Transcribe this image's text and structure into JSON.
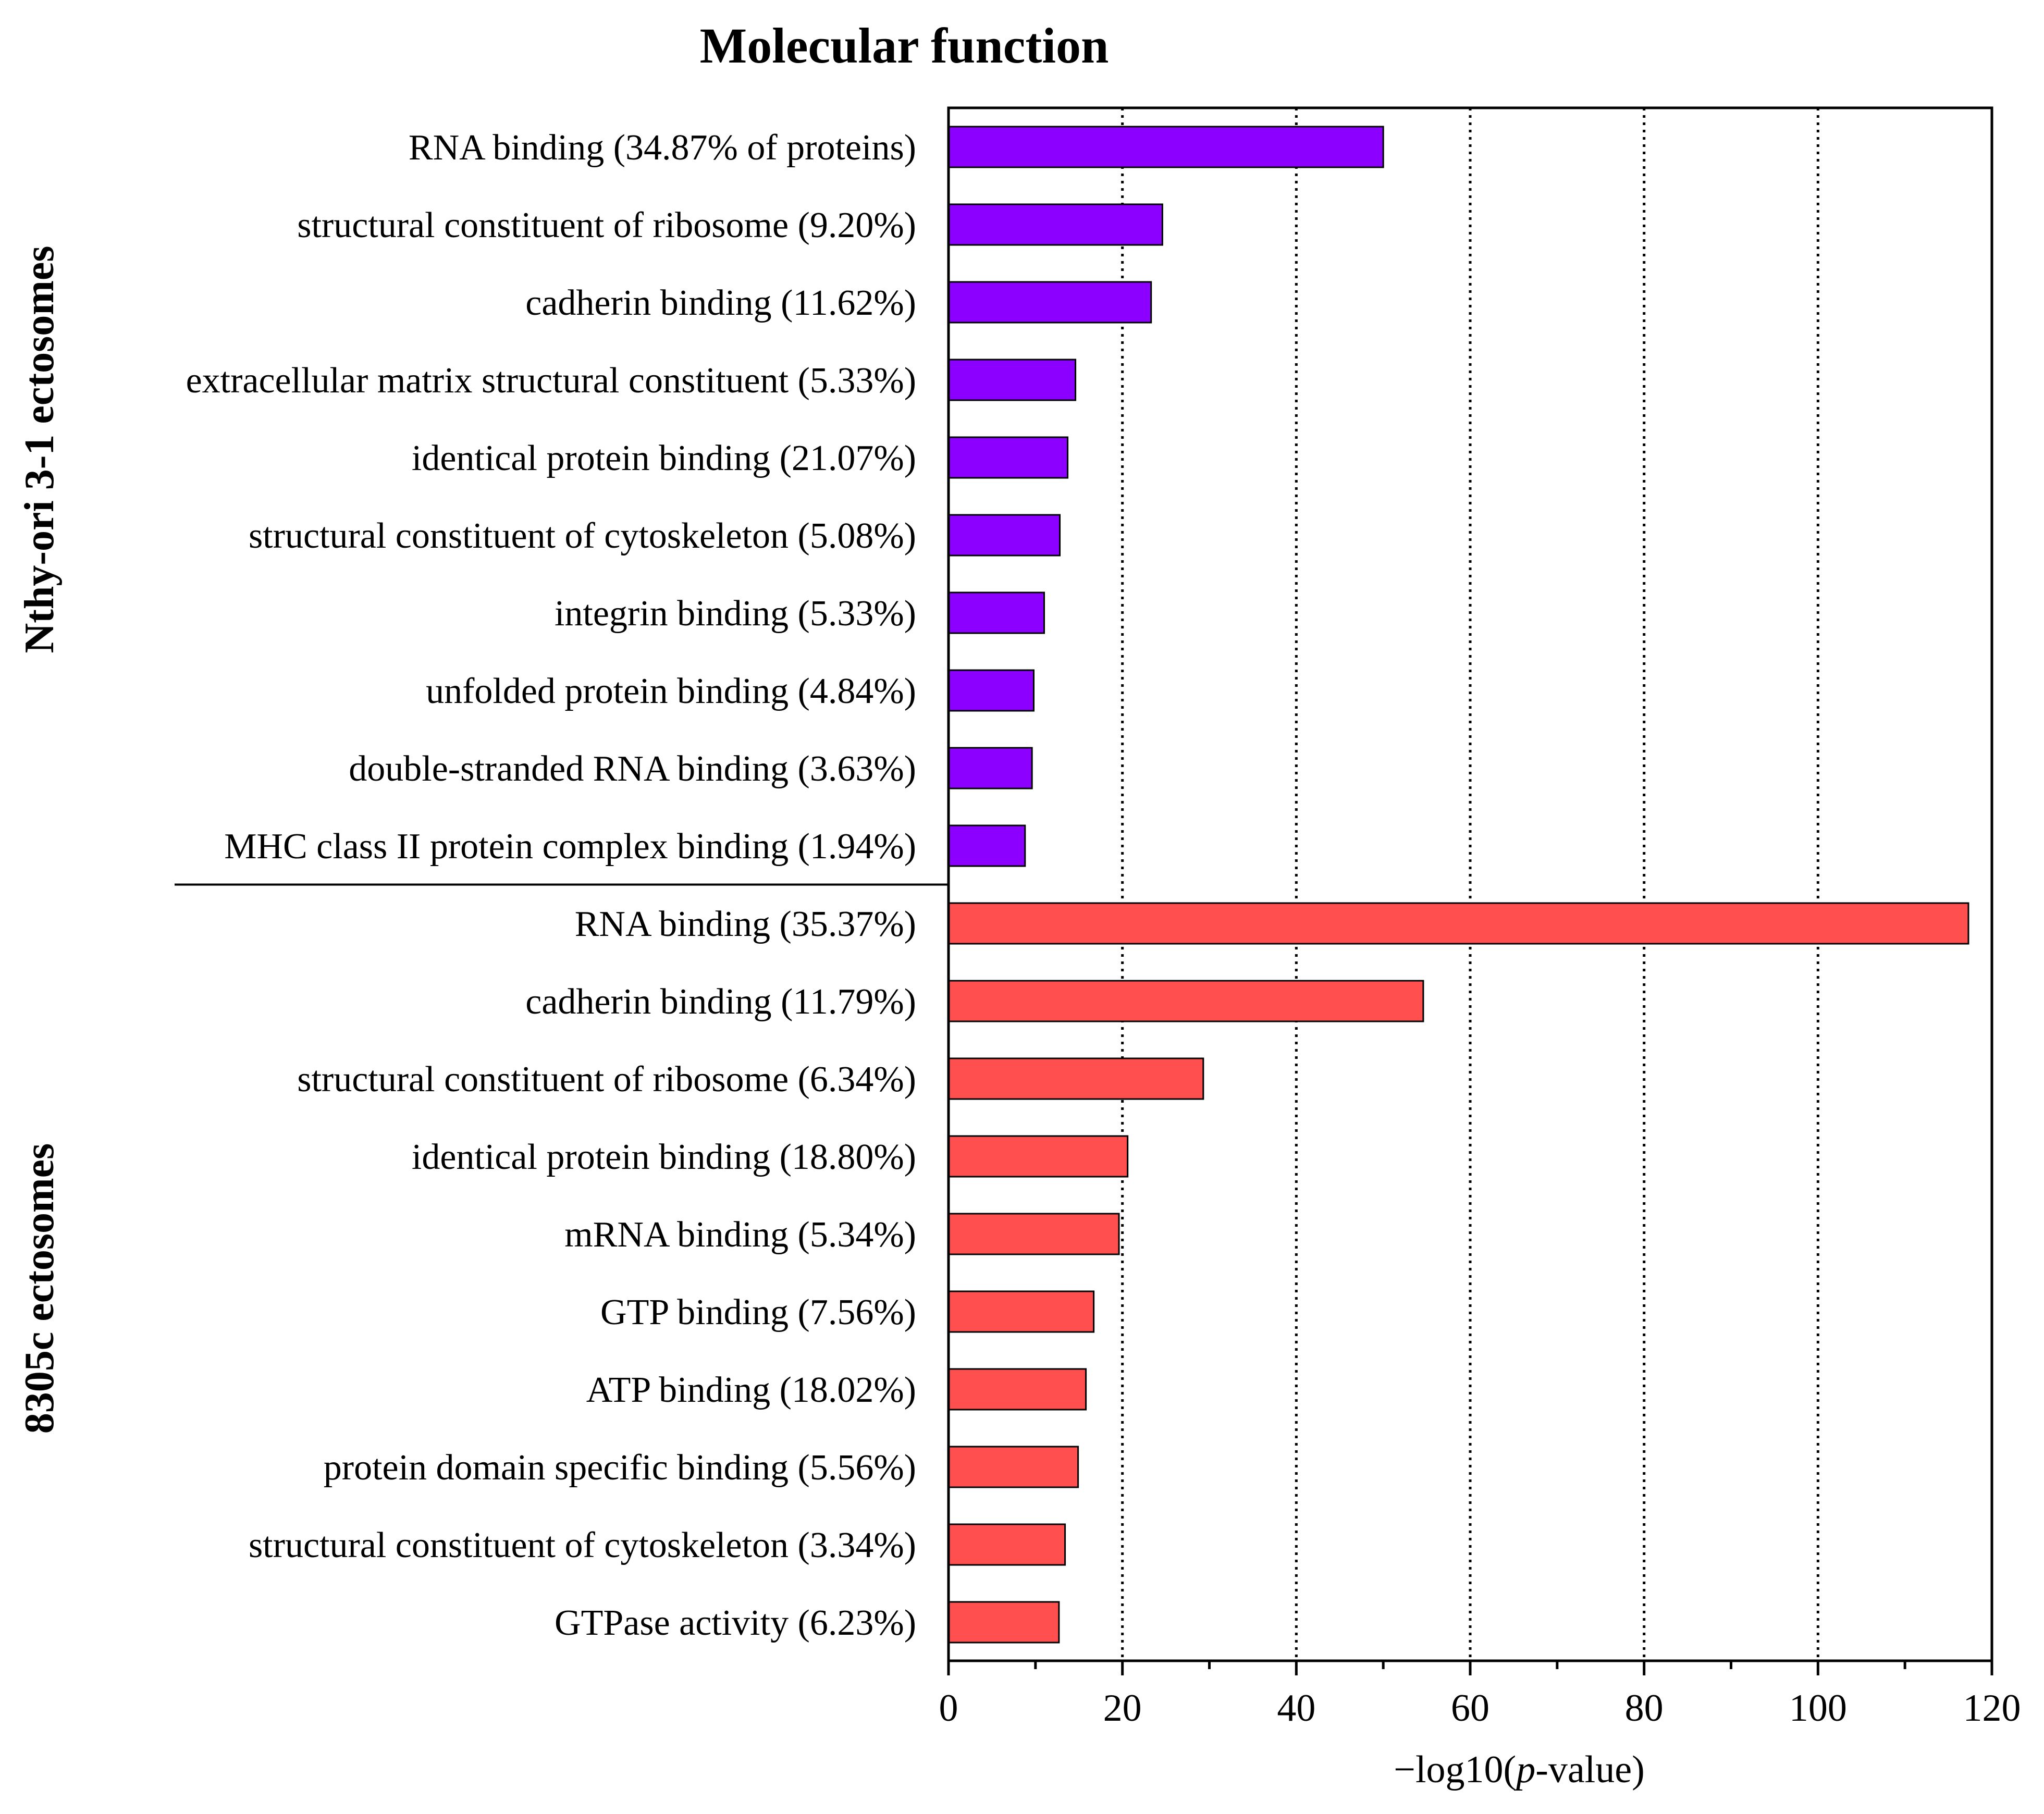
{
  "chart_data": {
    "type": "bar",
    "orientation": "horizontal",
    "title": "Molecular function",
    "xlabel_prefix": "−log10(",
    "xlabel_italic": "p",
    "xlabel_suffix": "-value)",
    "xlim": [
      0,
      120
    ],
    "xticks": [
      0,
      20,
      40,
      60,
      80,
      100,
      120
    ],
    "grid": "vertical dotted at major ticks",
    "groups": [
      {
        "name": "Nthy-ori 3-1 ectosomes",
        "color": "#8b00ff",
        "categories": [
          "RNA binding (34.87% of proteins)",
          "structural constituent of ribosome (9.20%)",
          "cadherin binding (11.62%)",
          "extracellular matrix structural constituent (5.33%)",
          "identical protein binding (21.07%)",
          "structural constituent of cytoskeleton (5.08%)",
          "integrin binding (5.33%)",
          "unfolded protein binding (4.84%)",
          "double-stranded RNA binding (3.63%)",
          "MHC class II protein complex binding (1.94%)"
        ],
        "values": [
          50.0,
          24.6,
          23.3,
          14.6,
          13.7,
          12.8,
          11.0,
          9.8,
          9.6,
          8.8
        ]
      },
      {
        "name": "8305c ectosomes",
        "color": "#ff4f4f",
        "categories": [
          "RNA binding (35.37%)",
          "cadherin binding (11.79%)",
          "structural constituent of ribosome (6.34%)",
          "identical protein binding (18.80%)",
          "mRNA binding (5.34%)",
          "GTP binding (7.56%)",
          "ATP binding (18.02%)",
          "protein domain specific binding (5.56%)",
          "structural constituent of cytoskeleton (3.34%)",
          "GTPase activity (6.23%)"
        ],
        "values": [
          117.3,
          54.6,
          29.3,
          20.6,
          19.6,
          16.7,
          15.8,
          14.9,
          13.4,
          12.7
        ]
      }
    ]
  }
}
